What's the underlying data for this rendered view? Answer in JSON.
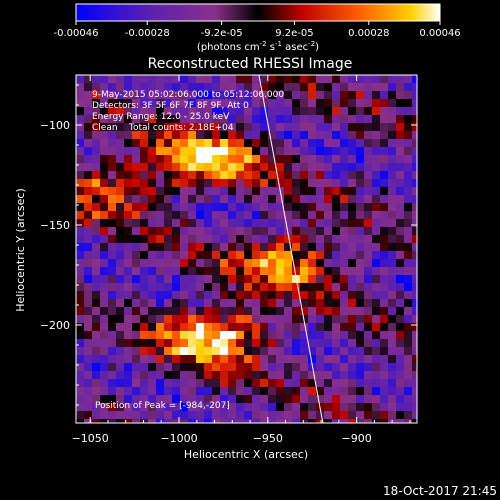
{
  "colorbar": {
    "tick_labels": [
      "-0.00046",
      "-0.00028",
      "-9.2e-05",
      "9.2e-05",
      "0.00028",
      "0.00046"
    ],
    "tick_values": [
      -0.00046,
      -0.00028,
      -9.2e-05,
      9.2e-05,
      0.00028,
      0.00046
    ],
    "range": [
      -0.00046,
      0.00046
    ],
    "units_main": "(photons cm",
    "units_sup1": "-2",
    "units_mid": " s",
    "units_sup2": "-1",
    "units_end": " asec",
    "units_sup3": "-2",
    "units_close": ")"
  },
  "chart_data": {
    "type": "heatmap",
    "title": "Reconstructed RHESSI Image",
    "xlabel": "Heliocentric X (arcsec)",
    "ylabel": "Heliocentric Y (arcsec)",
    "xlim": [
      -1058,
      -866
    ],
    "ylim": [
      -249,
      -75
    ],
    "x_ticks": [
      -1050,
      -1000,
      -950,
      -900
    ],
    "y_ticks": [
      -200,
      -150,
      -100
    ],
    "x_tick_labels": [
      "−1050",
      "−1000",
      "−950",
      "−900"
    ],
    "y_tick_labels": [
      "−200",
      "−150",
      "−100"
    ],
    "annotations": [
      "9-May-2015 05:02:06.000 to 05:12:06.000",
      "Detectors: 3F 5F 6F 7F 8F 9F, Att 0",
      "Energy Range: 12.0 - 25.0 keV",
      "Clean    Total counts: 2.18E+04"
    ],
    "peak_label": "Position of Peak = [-984,-207]",
    "peak_position": [
      -984,
      -207
    ],
    "limb_line": [
      [
        -955,
        -75
      ],
      [
        -919,
        -249
      ]
    ],
    "bright_regions": [
      {
        "x": -985,
        "y": -117,
        "level": 0.85
      },
      {
        "x": -940,
        "y": -168,
        "level": 0.8
      },
      {
        "x": -980,
        "y": -205,
        "level": 0.95
      },
      {
        "x": -1040,
        "y": -130,
        "level": 0.7
      }
    ]
  },
  "footer": {
    "timestamp": "18-Oct-2017 21:45"
  }
}
